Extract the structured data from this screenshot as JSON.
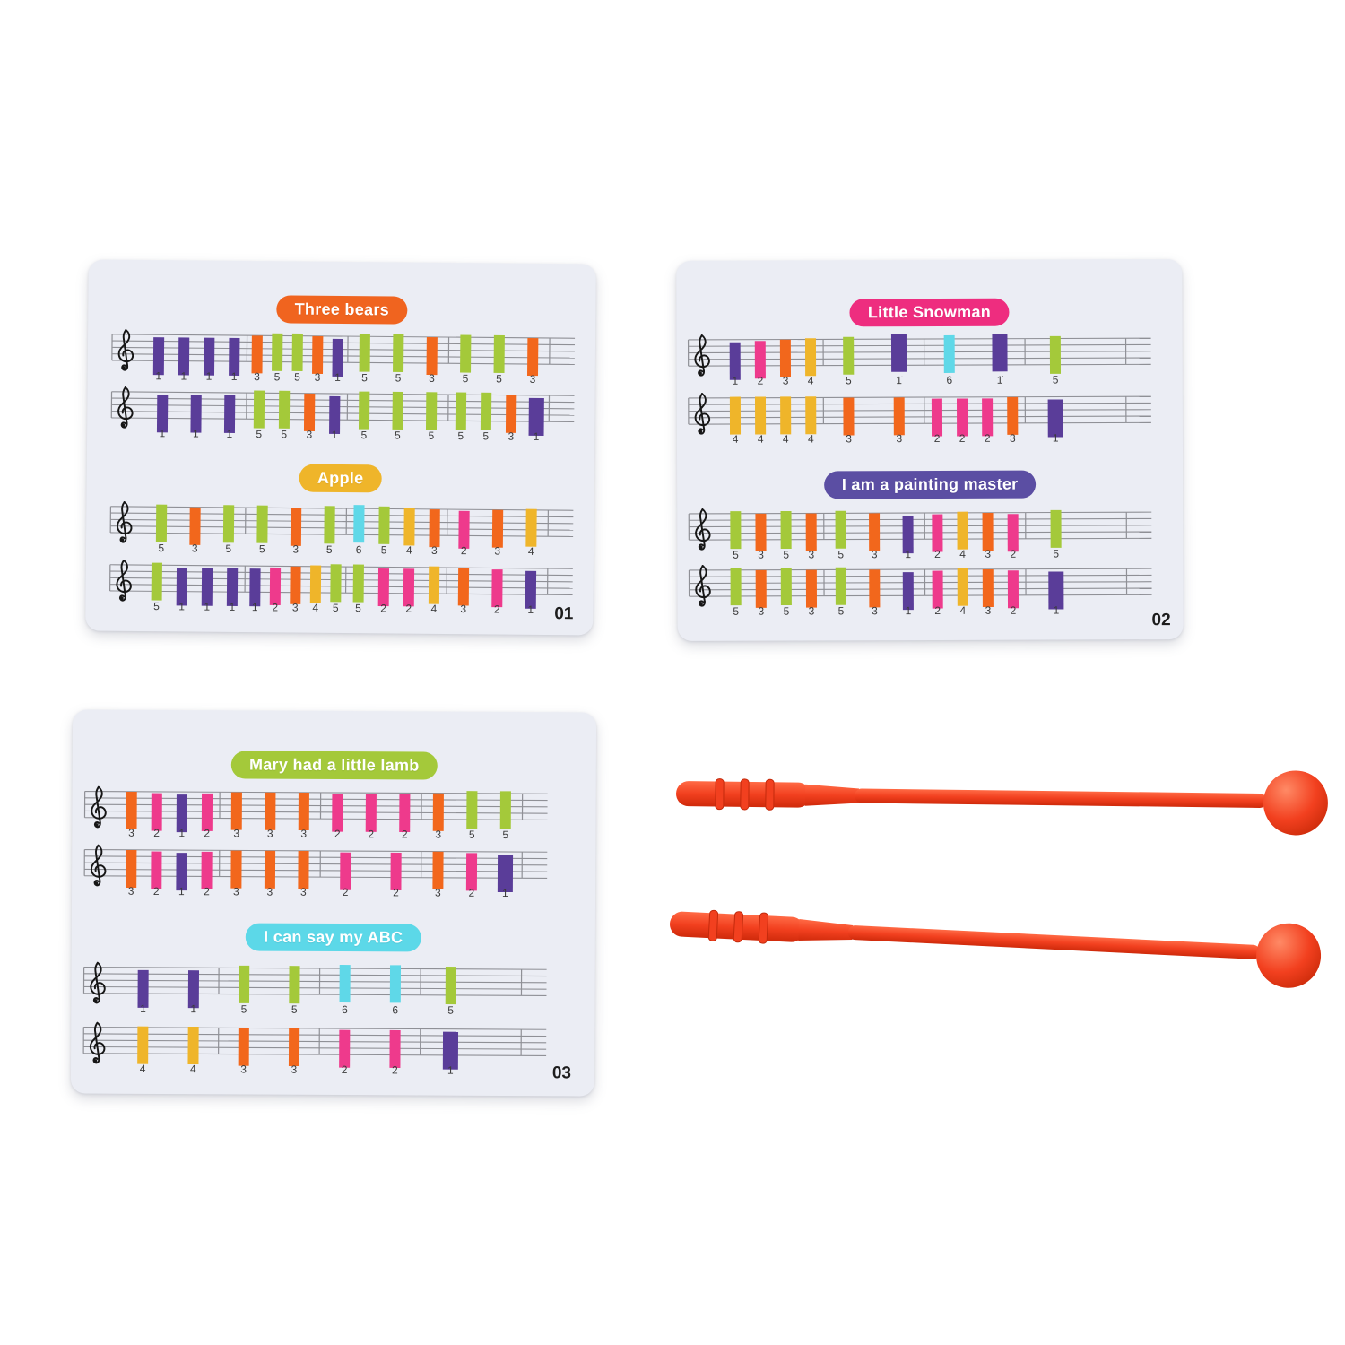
{
  "product": {
    "description_label": "music flashcards with two mallets",
    "mallet_color": "#f2401f",
    "card_bg": "#ebedf4"
  },
  "note_colors": {
    "1": "#5a3d99",
    "2": "#ee3a8c",
    "3": "#f2671c",
    "4": "#efb52a",
    "5": "#a4c93a",
    "6": "#5fd8e8"
  },
  "cards": [
    {
      "number": "01",
      "songs": [
        {
          "title": "Three bears",
          "pill_color": "#f0641f",
          "staves": [
            {
              "measures": [
                [
                  "1",
                  "1",
                  "1",
                  "1"
                ],
                [
                  "3",
                  "5",
                  "5",
                  "3",
                  "1"
                ],
                [
                  "5",
                  "5",
                  "3"
                ],
                [
                  "5",
                  "5",
                  "3"
                ]
              ]
            },
            {
              "measures": [
                [
                  "1",
                  "1",
                  "1"
                ],
                [
                  "5",
                  "5",
                  "3",
                  "1"
                ],
                [
                  "5",
                  "5",
                  "5"
                ],
                [
                  "5",
                  "5",
                  "3",
                  "1+"
                ]
              ]
            }
          ]
        },
        {
          "title": "Apple",
          "pill_color": "#efb52a",
          "staves": [
            {
              "measures": [
                [
                  "5",
                  "3",
                  "5"
                ],
                [
                  "5",
                  "3",
                  "5"
                ],
                [
                  "6",
                  "5",
                  "4",
                  "3"
                ],
                [
                  "2",
                  "3",
                  "4"
                ]
              ]
            },
            {
              "measures": [
                [
                  "5",
                  "1",
                  "1",
                  "1"
                ],
                [
                  "1",
                  "2",
                  "3",
                  "4",
                  "5"
                ],
                [
                  "5",
                  "2",
                  "2",
                  "4"
                ],
                [
                  "3",
                  "2",
                  "1"
                ]
              ]
            }
          ]
        }
      ]
    },
    {
      "number": "02",
      "songs": [
        {
          "title": "Little Snowman",
          "pill_color": "#ee2d7f",
          "staves": [
            {
              "measures": [
                [
                  "1",
                  "2",
                  "3",
                  "4"
                ],
                [
                  "5",
                  "1̇+"
                ],
                [
                  "6",
                  "1̇+"
                ],
                [
                  "5"
                ]
              ]
            },
            {
              "measures": [
                [
                  "4",
                  "4",
                  "4",
                  "4"
                ],
                [
                  "3",
                  "3"
                ],
                [
                  "2",
                  "2",
                  "2",
                  "3"
                ],
                [
                  "1+"
                ]
              ]
            }
          ]
        },
        {
          "title": "I am a painting master",
          "pill_color": "#5b4ea3",
          "staves": [
            {
              "measures": [
                [
                  "5",
                  "3",
                  "5",
                  "3"
                ],
                [
                  "5",
                  "3",
                  "1"
                ],
                [
                  "2",
                  "4",
                  "3",
                  "2"
                ],
                [
                  "5"
                ]
              ]
            },
            {
              "measures": [
                [
                  "5",
                  "3",
                  "5",
                  "3"
                ],
                [
                  "5",
                  "3",
                  "1"
                ],
                [
                  "2",
                  "4",
                  "3",
                  "2"
                ],
                [
                  "1+"
                ]
              ]
            }
          ]
        }
      ]
    },
    {
      "number": "03",
      "songs": [
        {
          "title": "Mary had a little lamb",
          "pill_color": "#a4c93a",
          "staves": [
            {
              "measures": [
                [
                  "3",
                  "2",
                  "1",
                  "2"
                ],
                [
                  "3",
                  "3",
                  "3"
                ],
                [
                  "2",
                  "2",
                  "2"
                ],
                [
                  "3",
                  "5",
                  "5"
                ]
              ]
            },
            {
              "measures": [
                [
                  "3",
                  "2",
                  "1",
                  "2"
                ],
                [
                  "3",
                  "3",
                  "3"
                ],
                [
                  "2",
                  "2"
                ],
                [
                  "3",
                  "2",
                  "1+"
                ]
              ]
            }
          ]
        },
        {
          "title": "I can say my ABC",
          "pill_color": "#5cd8e8",
          "staves": [
            {
              "measures": [
                [
                  "1",
                  "1"
                ],
                [
                  "5",
                  "5"
                ],
                [
                  "6",
                  "6"
                ],
                [
                  "5"
                ]
              ]
            },
            {
              "measures": [
                [
                  "4",
                  "4"
                ],
                [
                  "3",
                  "3"
                ],
                [
                  "2",
                  "2"
                ],
                [
                  "1+"
                ]
              ]
            }
          ]
        }
      ]
    }
  ],
  "mallets": {
    "count": 2
  }
}
